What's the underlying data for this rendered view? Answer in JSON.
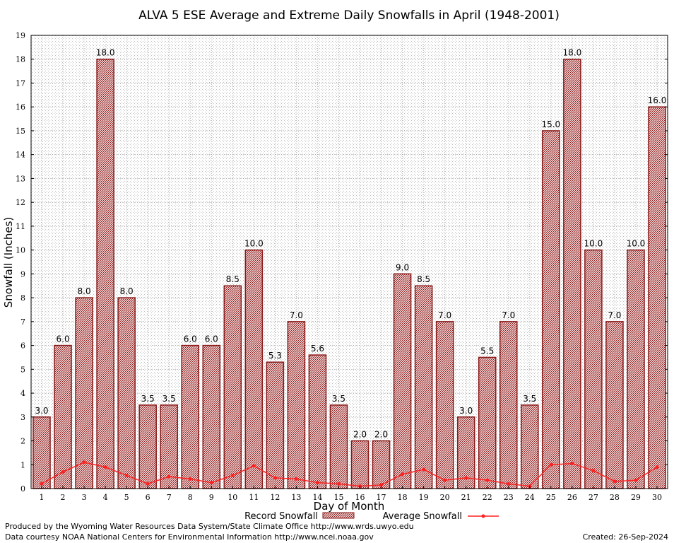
{
  "chart_data": {
    "type": "bar",
    "title": "ALVA 5 ESE Average and Extreme Daily Snowfalls in April (1948-2001)",
    "xlabel": "Day of Month",
    "ylabel": "Snowfall (Inches)",
    "ylim": [
      0,
      19
    ],
    "yticks": [
      0,
      1,
      2,
      3,
      4,
      5,
      6,
      7,
      8,
      9,
      10,
      11,
      12,
      13,
      14,
      15,
      16,
      17,
      18,
      19
    ],
    "grid": true,
    "categories": [
      "1",
      "2",
      "3",
      "4",
      "5",
      "6",
      "7",
      "8",
      "9",
      "10",
      "11",
      "12",
      "13",
      "14",
      "15",
      "16",
      "17",
      "18",
      "19",
      "20",
      "21",
      "22",
      "23",
      "24",
      "25",
      "26",
      "27",
      "28",
      "29",
      "30"
    ],
    "series": [
      {
        "name": "Record Snowfall",
        "type": "bar",
        "color": "#8b1a1a",
        "values": [
          3.0,
          6.0,
          8.0,
          18.0,
          8.0,
          3.5,
          3.5,
          6.0,
          6.0,
          8.5,
          10.0,
          5.3,
          7.0,
          5.6,
          3.5,
          2.0,
          2.0,
          9.0,
          8.5,
          7.0,
          3.0,
          5.5,
          7.0,
          3.5,
          15.0,
          18.0,
          10.0,
          7.0,
          10.0,
          16.0
        ],
        "labels": [
          "3.0",
          "6.0",
          "8.0",
          "18.0",
          "8.0",
          "3.5",
          "3.5",
          "6.0",
          "6.0",
          "8.5",
          "10.0",
          "5.3",
          "7.0",
          "5.6",
          "3.5",
          "2.0",
          "2.0",
          "9.0",
          "8.5",
          "7.0",
          "3.0",
          "5.5",
          "7.0",
          "3.5",
          "15.0",
          "18.0",
          "10.0",
          "7.0",
          "10.0",
          "16.0"
        ]
      },
      {
        "name": "Average Snowfall",
        "type": "line",
        "color": "#ff2020",
        "values": [
          0.2,
          0.7,
          1.1,
          0.9,
          0.55,
          0.2,
          0.5,
          0.4,
          0.25,
          0.55,
          0.95,
          0.45,
          0.4,
          0.25,
          0.2,
          0.1,
          0.15,
          0.6,
          0.8,
          0.35,
          0.45,
          0.35,
          0.2,
          0.1,
          1.0,
          1.05,
          0.75,
          0.3,
          0.35,
          0.9
        ]
      }
    ],
    "legend": {
      "placement": "bottom"
    }
  },
  "footer": {
    "produced_by": "Produced by the Wyoming Water Resources Data System/State Climate Office http://www.wrds.uwyo.edu",
    "data_courtesy": "Data courtesy NOAA National Centers for Environmental Information http://www.ncei.noaa.gov",
    "created": "Created: 26-Sep-2024"
  }
}
